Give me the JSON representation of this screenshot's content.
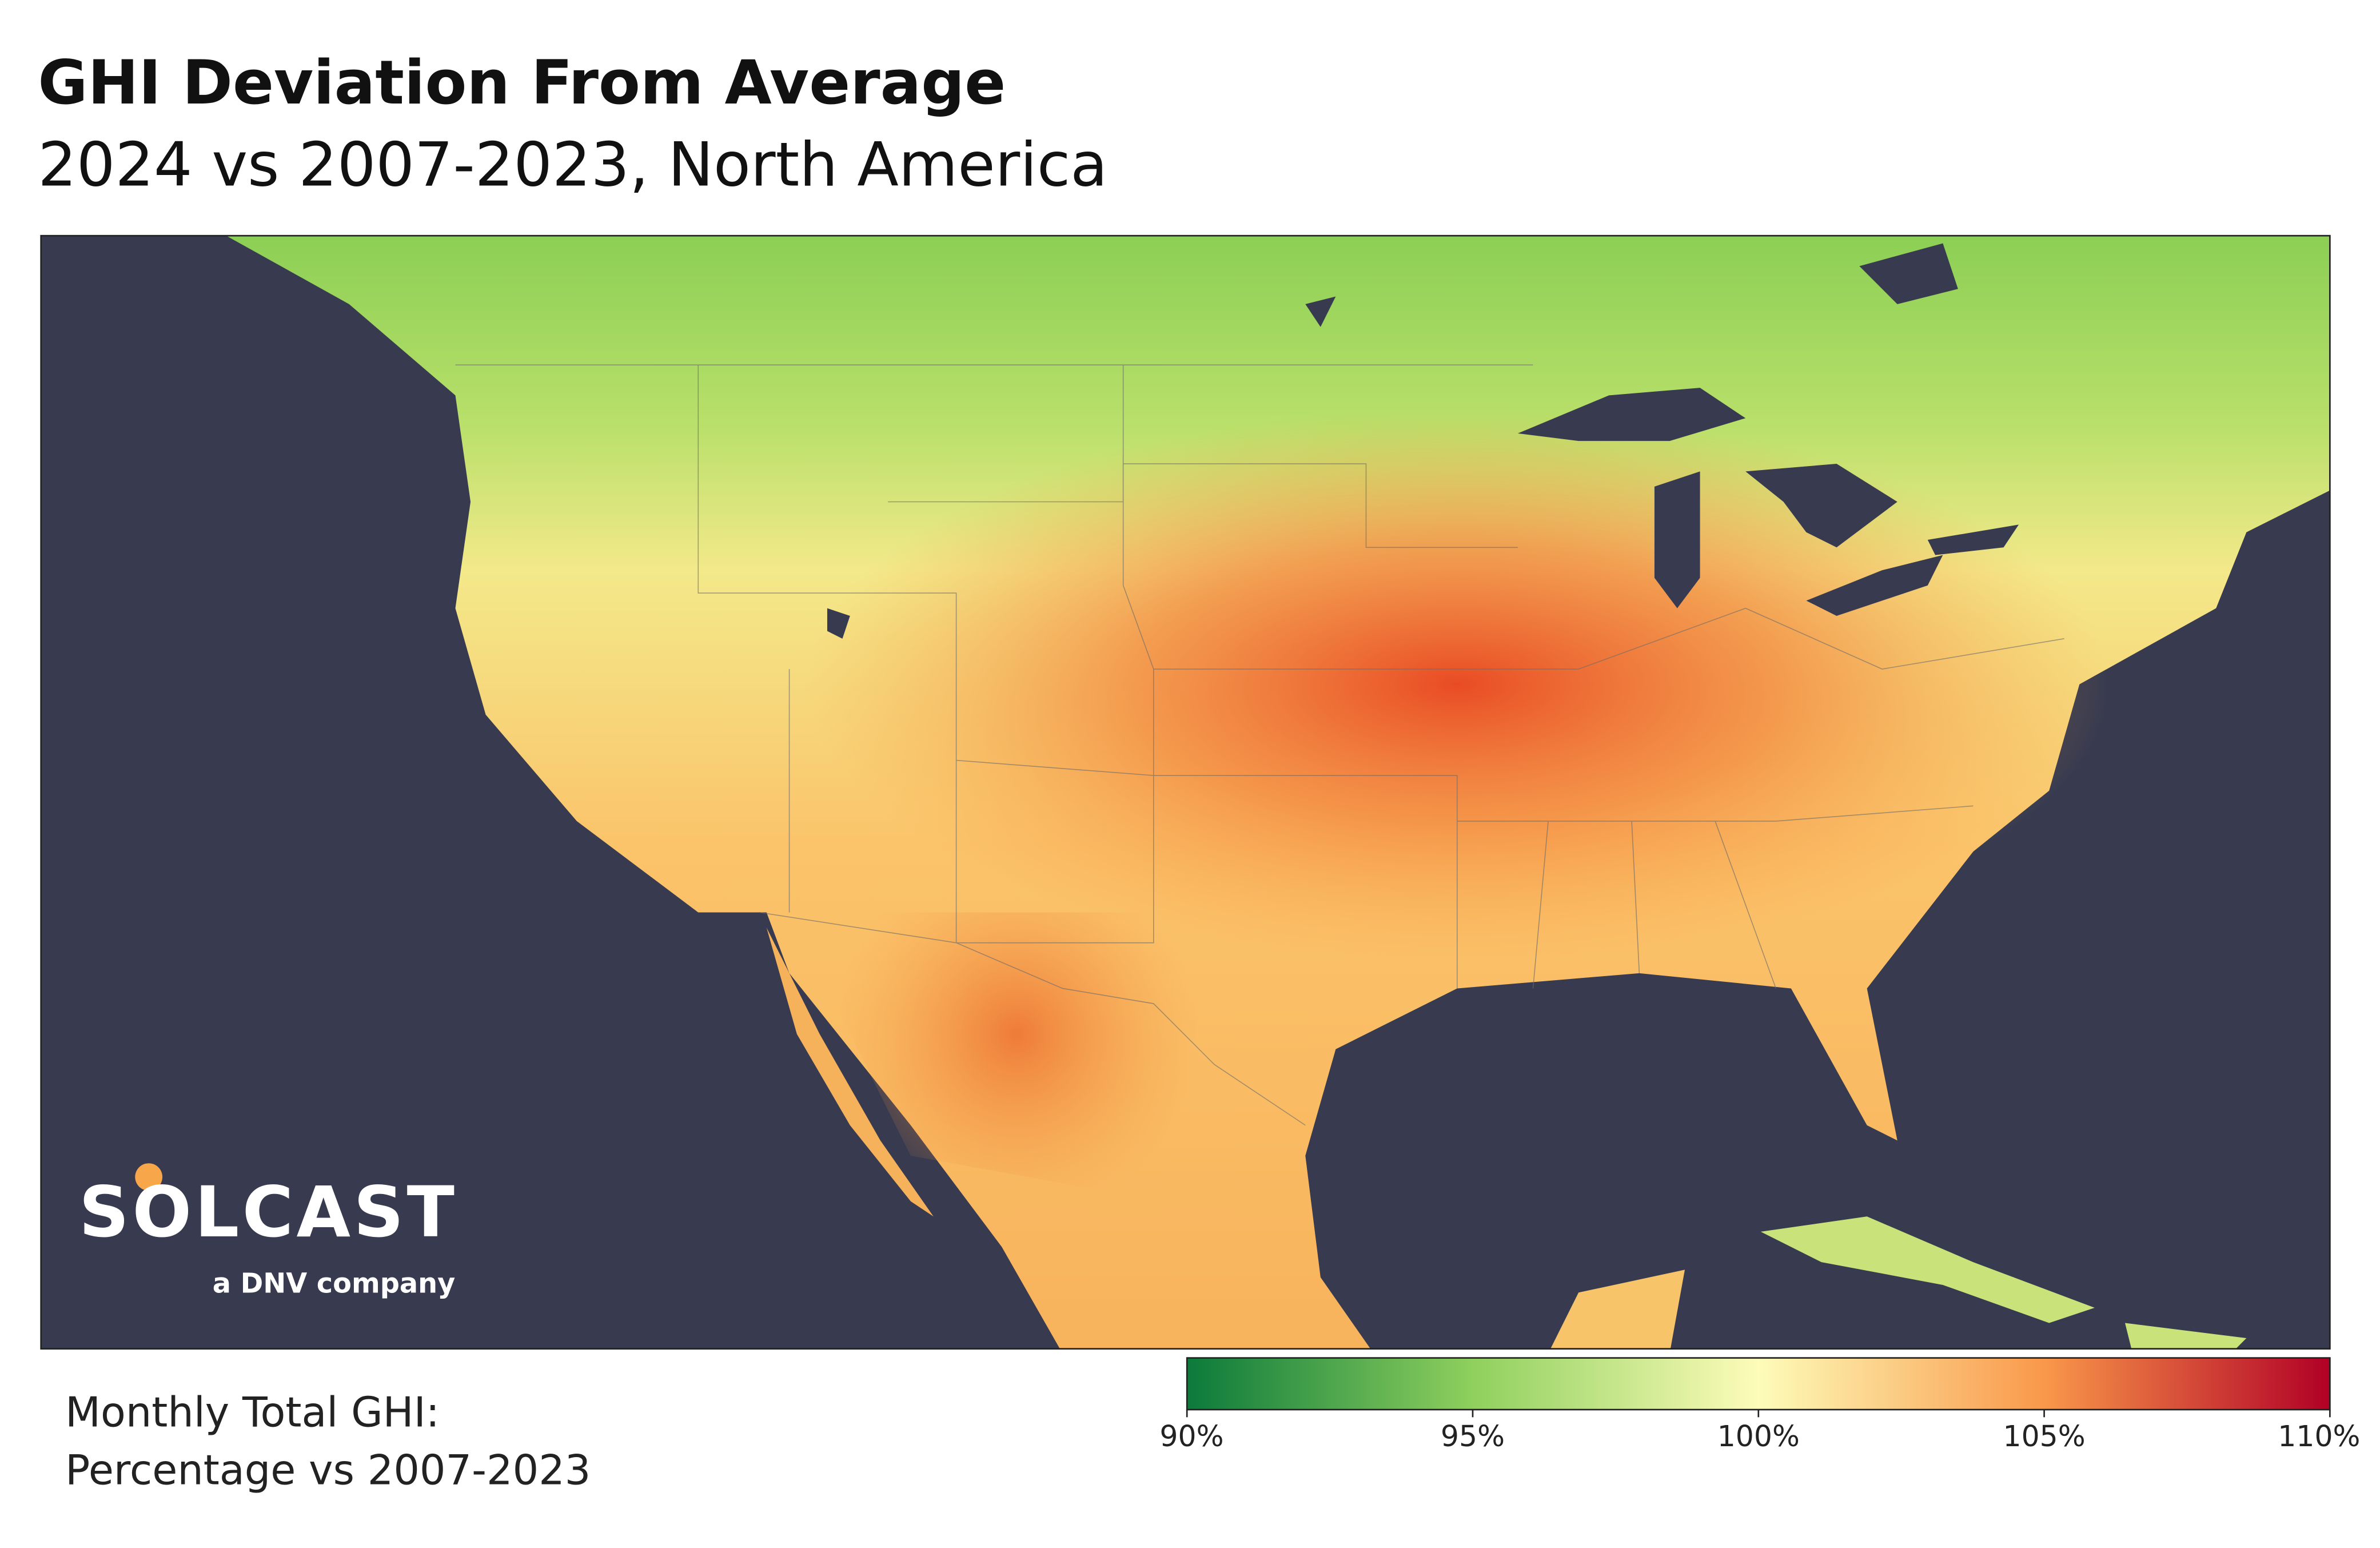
{
  "title": "GHI Deviation From Average",
  "subtitle": "2024 vs 2007-2023, North America",
  "logo": {
    "name": "SOLCAST",
    "tagline": "a DNV company"
  },
  "legend": {
    "caption": [
      "Monthly Total GHI:",
      "Percentage vs 2007-2023"
    ],
    "range": [
      90,
      110
    ],
    "ticks": [
      {
        "value": 90,
        "label": "90%"
      },
      {
        "value": 95,
        "label": "95%"
      },
      {
        "value": 100,
        "label": "100%"
      },
      {
        "value": 105,
        "label": "105%"
      },
      {
        "value": 110,
        "label": "110%"
      }
    ],
    "colors": [
      "#0b7a3b",
      "#8fd05e",
      "#fdfcb9",
      "#f9984a",
      "#b10026"
    ]
  }
}
